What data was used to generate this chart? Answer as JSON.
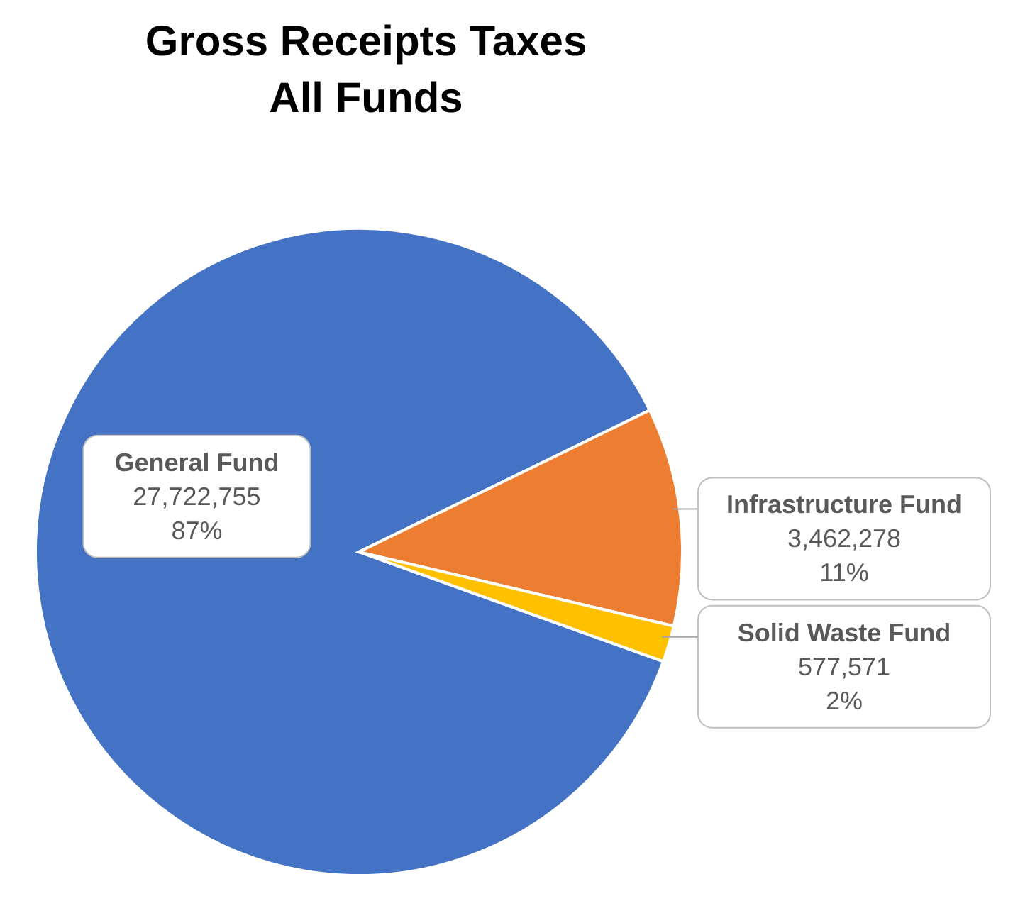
{
  "chart_data": {
    "type": "pie",
    "title": "Gross Receipts Taxes\nAll Funds",
    "categories": [
      "General Fund",
      "Infrastructure Fund",
      "Solid Waste Fund"
    ],
    "values": [
      27722755,
      3462278,
      577571
    ],
    "colors": [
      "#4472c4",
      "#ed7d31",
      "#ffc000"
    ],
    "value_labels": [
      "27,722,755\n87%",
      "3,462,278\n11%",
      "577,571\n2%"
    ],
    "legend": false
  }
}
